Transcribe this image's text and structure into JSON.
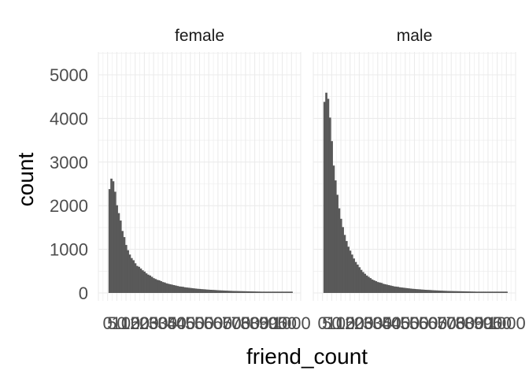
{
  "chart_data": {
    "type": "bar",
    "facets": [
      "female",
      "male"
    ],
    "xlabel": "friend_count",
    "ylabel": "count",
    "ylim": [
      0,
      5300
    ],
    "y_ticks": [
      "0",
      "1000",
      "2000",
      "3000",
      "4000",
      "5000"
    ],
    "x_ticks": [
      "0",
      "50",
      "100",
      "150",
      "200",
      "250",
      "300",
      "350",
      "400",
      "450",
      "500",
      "550",
      "600",
      "650",
      "700",
      "750",
      "800",
      "850",
      "900",
      "950",
      "1000"
    ],
    "grid": true,
    "bin_width": 10,
    "series": [
      {
        "facet": "female",
        "values": [
          2380,
          2620,
          2560,
          2320,
          2010,
          1830,
          1660,
          1420,
          1280,
          1100,
          980,
          880,
          800,
          750,
          680,
          620,
          600,
          560,
          520,
          490,
          450,
          420,
          400,
          370,
          340,
          320,
          300,
          290,
          270,
          250,
          240,
          220,
          210,
          200,
          190,
          180,
          170,
          160,
          150,
          145,
          140,
          130,
          125,
          120,
          115,
          110,
          105,
          100,
          95,
          92,
          88,
          85,
          82,
          78,
          75,
          72,
          70,
          68,
          65,
          62,
          60,
          58,
          56,
          54,
          52,
          50,
          48,
          46,
          45,
          44,
          43,
          42,
          41,
          40,
          39,
          38,
          37,
          36,
          35,
          34,
          33,
          32,
          31,
          30,
          30,
          30,
          30,
          30,
          30,
          30,
          30,
          30,
          30,
          30,
          30,
          30,
          30,
          30,
          30,
          30
        ]
      },
      {
        "facet": "male",
        "values": [
          4380,
          4590,
          4450,
          4020,
          3480,
          2920,
          2580,
          2250,
          1940,
          1700,
          1510,
          1330,
          1190,
          1060,
          970,
          880,
          790,
          710,
          650,
          590,
          530,
          480,
          440,
          400,
          370,
          340,
          310,
          290,
          270,
          250,
          240,
          230,
          210,
          200,
          190,
          180,
          170,
          160,
          150,
          145,
          140,
          130,
          125,
          120,
          115,
          110,
          105,
          100,
          95,
          92,
          88,
          85,
          82,
          78,
          75,
          72,
          70,
          68,
          65,
          62,
          60,
          58,
          56,
          54,
          52,
          50,
          48,
          46,
          45,
          44,
          43,
          42,
          41,
          40,
          39,
          38,
          37,
          36,
          35,
          34,
          33,
          32,
          31,
          30,
          30,
          30,
          30,
          30,
          30,
          30,
          30,
          30,
          30,
          30,
          30,
          30,
          30,
          30,
          30,
          30
        ]
      }
    ]
  }
}
